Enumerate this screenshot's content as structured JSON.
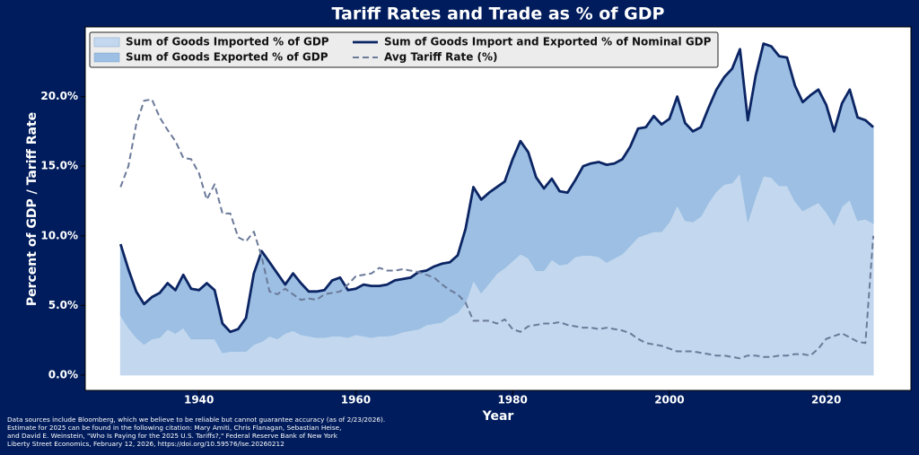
{
  "chart_data": {
    "type": "area",
    "title": "Tariff Rates and Trade as % of GDP",
    "xlabel": "Year",
    "ylabel": "Percent of GDP / Tariff Rate",
    "footnote": [
      "Data sources include Bloomberg, which we believe to be reliable but cannot guarantee accuracy (as of 2/23/2026).",
      "Estimate for 2025 can be found in the following citation: Mary Amiti, Chris Flanagan, Sebastian Heise,",
      "and David E. Weinstein, \"Who Is Paying for the 2025 U.S. Tariffs?,\" Federal Reserve Bank of New York",
      "Liberty Street Economics, February 12, 2026, https://doi.org/10.59576/lse.20260212"
    ],
    "legend": "upper left",
    "xlim": [
      1925.5,
      2030.8
    ],
    "xticks": [
      1940,
      1960,
      1980,
      2000,
      2020
    ],
    "ylim": [
      -1.1,
      25
    ],
    "yticks": [
      {
        "value": 0,
        "label": "0.0%"
      },
      {
        "value": 5,
        "label": "5.0%"
      },
      {
        "value": 10,
        "label": "10.0%"
      },
      {
        "value": 15,
        "label": "15.0%"
      },
      {
        "value": 20,
        "label": "20.0%"
      }
    ],
    "x": [
      1930,
      1931,
      1932,
      1933,
      1934,
      1935,
      1936,
      1937,
      1938,
      1939,
      1940,
      1941,
      1942,
      1943,
      1944,
      1945,
      1946,
      1947,
      1948,
      1949,
      1950,
      1951,
      1952,
      1953,
      1954,
      1955,
      1956,
      1957,
      1958,
      1959,
      1960,
      1961,
      1962,
      1963,
      1964,
      1965,
      1966,
      1967,
      1968,
      1969,
      1970,
      1971,
      1972,
      1973,
      1974,
      1975,
      1976,
      1977,
      1978,
      1979,
      1980,
      1981,
      1982,
      1983,
      1984,
      1985,
      1986,
      1987,
      1988,
      1989,
      1990,
      1991,
      1992,
      1993,
      1994,
      1995,
      1996,
      1997,
      1998,
      1999,
      2000,
      2001,
      2002,
      2003,
      2004,
      2005,
      2006,
      2007,
      2008,
      2009,
      2010,
      2011,
      2012,
      2013,
      2014,
      2015,
      2016,
      2017,
      2018,
      2019,
      2020,
      2021,
      2022,
      2023,
      2024,
      2025,
      2026
    ],
    "series": [
      {
        "name": "Sum of Goods Imported % of GDP",
        "color": "#c3d8ee",
        "mark": "area",
        "values": [
          4.3,
          3.4,
          2.7,
          2.2,
          2.6,
          2.7,
          3.3,
          3.0,
          3.4,
          2.6,
          2.6,
          2.6,
          2.6,
          1.6,
          1.7,
          1.7,
          1.7,
          2.2,
          2.4,
          2.8,
          2.6,
          3.0,
          3.2,
          2.9,
          2.8,
          2.7,
          2.7,
          2.8,
          2.8,
          2.7,
          2.9,
          2.8,
          2.7,
          2.8,
          2.8,
          2.9,
          3.1,
          3.2,
          3.3,
          3.6,
          3.7,
          3.8,
          4.2,
          4.5,
          5.2,
          6.8,
          5.9,
          6.6,
          7.3,
          7.7,
          8.2,
          8.7,
          8.4,
          7.5,
          7.5,
          8.3,
          7.9,
          8.0,
          8.5,
          8.6,
          8.6,
          8.5,
          8.1,
          8.4,
          8.7,
          9.3,
          9.9,
          10.1,
          10.3,
          10.3,
          11.0,
          12.2,
          11.1,
          11.0,
          11.4,
          12.4,
          13.2,
          13.7,
          13.8,
          14.5,
          11.0,
          12.8,
          14.3,
          14.2,
          13.6,
          13.6,
          12.5,
          11.8,
          12.1,
          12.4,
          11.7,
          10.8,
          12.1,
          12.6,
          11.1,
          11.2,
          10.9
        ]
      },
      {
        "name": "Sum of Goods Exported % of GDP",
        "color": "#9cbfe3",
        "mark": "area",
        "values": [
          5.1,
          4.2,
          3.3,
          2.9,
          3.0,
          3.2,
          3.3,
          3.1,
          3.8,
          3.6,
          3.5,
          4.0,
          3.5,
          2.1,
          1.4,
          1.6,
          2.4,
          5.1,
          6.5,
          5.3,
          4.7,
          3.5,
          4.1,
          3.7,
          3.2,
          3.3,
          3.4,
          4.0,
          4.2,
          3.4,
          3.3,
          3.7,
          3.7,
          3.6,
          3.7,
          3.9,
          3.8,
          3.8,
          4.1,
          3.9,
          4.1,
          4.2,
          3.9,
          4.1,
          5.3,
          6.7,
          6.7,
          6.5,
          6.2,
          6.2,
          7.3,
          8.1,
          7.6,
          6.7,
          5.9,
          5.8,
          5.3,
          5.1,
          5.5,
          6.4,
          6.6,
          6.8,
          7.0,
          6.8,
          6.8,
          7.1,
          7.8,
          7.7,
          8.3,
          7.7,
          7.4,
          7.8,
          7.0,
          6.5,
          6.4,
          6.8,
          7.3,
          7.7,
          8.2,
          8.9,
          7.3,
          8.7,
          9.5,
          9.4,
          9.3,
          9.2,
          8.3,
          7.8,
          8.0,
          8.1,
          7.7,
          6.7,
          7.4,
          7.9,
          7.4,
          7.1,
          6.9
        ]
      },
      {
        "name": "Sum of Goods Import and Exported % of Nominal GDP",
        "color": "#0b2463",
        "mark": "line",
        "values": [
          9.4,
          7.6,
          6.0,
          5.1,
          5.6,
          5.9,
          6.6,
          6.1,
          7.2,
          6.2,
          6.1,
          6.6,
          6.1,
          3.7,
          3.1,
          3.3,
          4.1,
          7.3,
          8.9,
          8.1,
          7.3,
          6.5,
          7.3,
          6.6,
          6.0,
          6.0,
          6.1,
          6.8,
          7.0,
          6.1,
          6.2,
          6.5,
          6.4,
          6.4,
          6.5,
          6.8,
          6.9,
          7.0,
          7.4,
          7.5,
          7.8,
          8.0,
          8.1,
          8.6,
          10.5,
          13.5,
          12.6,
          13.1,
          13.5,
          13.9,
          15.5,
          16.8,
          16.0,
          14.2,
          13.4,
          14.1,
          13.2,
          13.1,
          14.0,
          15.0,
          15.2,
          15.3,
          15.1,
          15.2,
          15.5,
          16.4,
          17.7,
          17.8,
          18.6,
          18.0,
          18.4,
          20.0,
          18.1,
          17.5,
          17.8,
          19.2,
          20.5,
          21.4,
          22.0,
          23.4,
          18.3,
          21.5,
          23.8,
          23.6,
          22.9,
          22.8,
          20.8,
          19.6,
          20.1,
          20.5,
          19.4,
          17.5,
          19.5,
          20.5,
          18.5,
          18.3,
          17.8
        ]
      },
      {
        "name": "Avg Tariff Rate (%)",
        "color": "#6b7a99",
        "mark": "dashed-line",
        "values": [
          13.5,
          15.0,
          18.0,
          19.7,
          19.8,
          18.5,
          17.6,
          16.8,
          15.6,
          15.5,
          14.5,
          12.6,
          13.7,
          11.6,
          11.6,
          9.9,
          9.6,
          10.3,
          8.5,
          6.0,
          5.8,
          6.2,
          5.8,
          5.4,
          5.5,
          5.4,
          5.8,
          5.9,
          6.0,
          6.5,
          7.1,
          7.2,
          7.3,
          7.7,
          7.5,
          7.5,
          7.6,
          7.5,
          7.4,
          7.2,
          7.0,
          6.5,
          6.1,
          5.8,
          5.2,
          3.9,
          3.9,
          3.9,
          3.7,
          4.0,
          3.3,
          3.1,
          3.5,
          3.6,
          3.7,
          3.7,
          3.8,
          3.6,
          3.5,
          3.4,
          3.4,
          3.3,
          3.4,
          3.3,
          3.2,
          3.0,
          2.6,
          2.3,
          2.2,
          2.1,
          1.9,
          1.7,
          1.7,
          1.7,
          1.6,
          1.5,
          1.4,
          1.4,
          1.3,
          1.2,
          1.4,
          1.4,
          1.3,
          1.3,
          1.4,
          1.4,
          1.5,
          1.5,
          1.4,
          1.9,
          2.6,
          2.8,
          3.0,
          2.7,
          2.4,
          2.3,
          10.0
        ]
      }
    ]
  }
}
